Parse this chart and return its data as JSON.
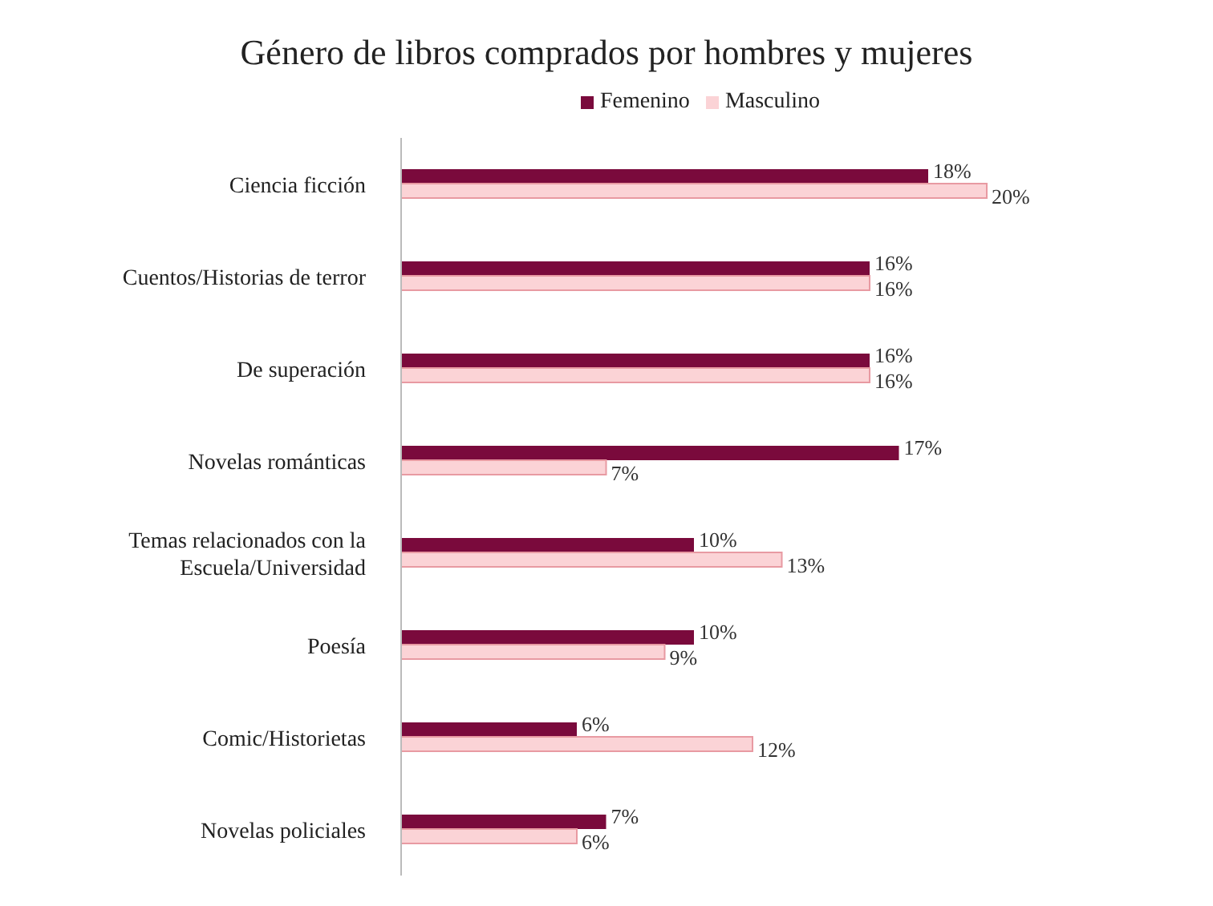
{
  "chart_data": {
    "type": "bar",
    "orientation": "horizontal",
    "title": "Género de libros comprados por hombres y mujeres",
    "categories": [
      "Ciencia ficción",
      "Cuentos/Historias de terror",
      "De superación",
      "Novelas románticas",
      "Temas relacionados con la Escuela/Universidad",
      "Poesía",
      "Comic/Historietas",
      "Novelas policiales"
    ],
    "series": [
      {
        "name": "Femenino",
        "color": "#7a0a3c",
        "values": [
          18,
          16,
          16,
          17,
          10,
          10,
          6,
          7
        ],
        "value_labels": [
          "18%",
          "16%",
          "16%",
          "17%",
          "10%",
          "10%",
          "6%",
          "7%"
        ]
      },
      {
        "name": "Masculino",
        "color": "#fbd3d6",
        "values": [
          20,
          16,
          16,
          7,
          13,
          9,
          12,
          6
        ],
        "value_labels": [
          "20%",
          "16%",
          "16%",
          "7%",
          "13%",
          "9%",
          "12%",
          "6%"
        ]
      }
    ],
    "legend": "top",
    "grid": false
  }
}
